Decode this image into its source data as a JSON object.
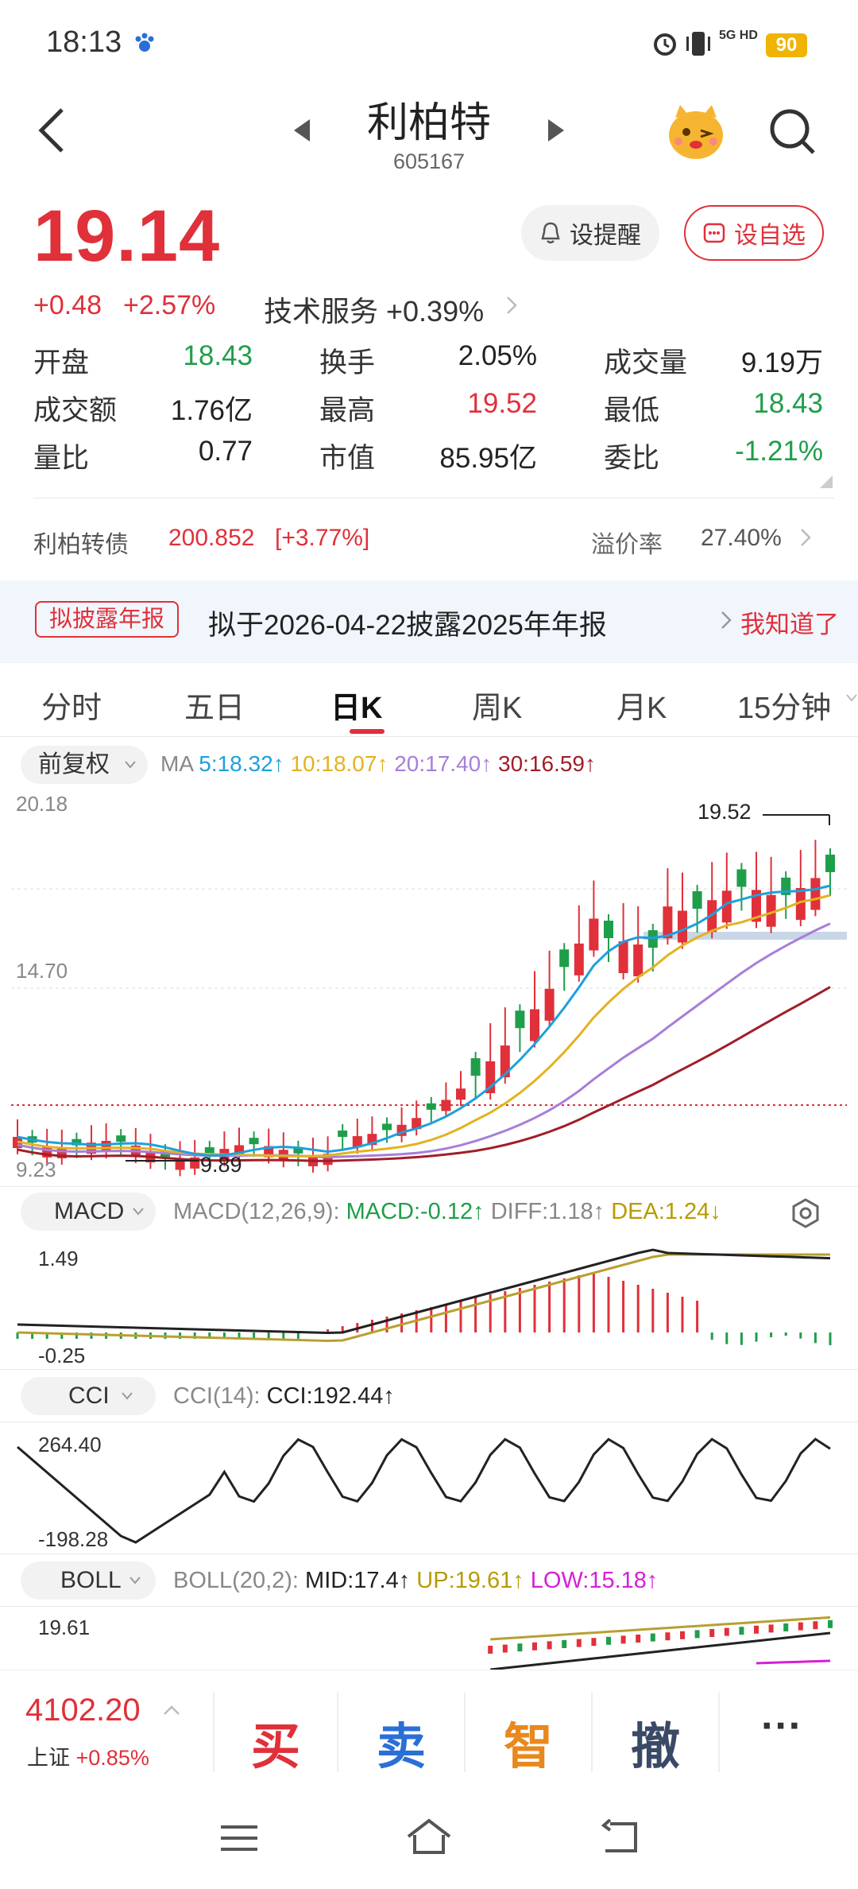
{
  "status": {
    "time": "18:13",
    "battery": "90",
    "network": "5G HD"
  },
  "header": {
    "title": "利柏特",
    "code": "605167"
  },
  "quote": {
    "price": "19.14",
    "change": "+0.48",
    "change_pct": "+2.57%",
    "sector": "技术服务 +0.39%",
    "alert_label": "设提醒",
    "watch_label": "设自选"
  },
  "stats": [
    [
      {
        "label": "开盘",
        "value": "18.43",
        "color": "green"
      },
      {
        "label": "换手",
        "value": "2.05%",
        "color": "dark"
      },
      {
        "label": "成交量",
        "value": "9.19万",
        "color": "dark"
      }
    ],
    [
      {
        "label": "成交额",
        "value": "1.76亿",
        "color": "dark"
      },
      {
        "label": "最高",
        "value": "19.52",
        "color": "red"
      },
      {
        "label": "最低",
        "value": "18.43",
        "color": "green"
      }
    ],
    [
      {
        "label": "量比",
        "value": "0.77",
        "color": "dark"
      },
      {
        "label": "市值",
        "value": "85.95亿",
        "color": "dark"
      },
      {
        "label": "委比",
        "value": "-1.21%",
        "color": "green"
      }
    ]
  ],
  "bond": {
    "name": "利柏转债",
    "price": "200.852",
    "change": "[+3.77%]",
    "premium_label": "溢价率",
    "premium": "27.40%"
  },
  "notice": {
    "tag": "拟披露年报",
    "text": "拟于2026-04-22披露2025年年报",
    "dismiss": "我知道了"
  },
  "tabs": [
    "分时",
    "五日",
    "日K",
    "周K",
    "月K",
    "15分钟"
  ],
  "active_tab": 2,
  "kline": {
    "adjust": "前复权",
    "ma_label": "MA",
    "ma5": "5:18.32↑",
    "ma10": "10:18.07↑",
    "ma20": "20:17.40↑",
    "ma30": "30:16.59↑",
    "y_top": "20.18",
    "y_mid": "14.70",
    "y_bot": "9.23",
    "high_label": "19.52",
    "low_label": "9.89"
  },
  "macd": {
    "name": "MACD",
    "params": "MACD(12,26,9):",
    "macd": "MACD:-0.12↑",
    "diff": "DIFF:1.18↑",
    "dea": "DEA:1.24↓",
    "y_top": "1.49",
    "y_bot": "-0.25"
  },
  "cci": {
    "name": "CCI",
    "params": "CCI(14):",
    "value": "CCI:192.44↑",
    "y_top": "264.40",
    "y_bot": "-198.28"
  },
  "boll": {
    "name": "BOLL",
    "params": "BOLL(20,2):",
    "mid": "MID:17.4↑",
    "up": "UP:19.61↑",
    "low": "LOW:15.18↑",
    "y_top": "19.61"
  },
  "index": {
    "value": "4102.20",
    "name": "上证",
    "change": "+0.85%"
  },
  "actions": {
    "buy": "买",
    "sell": "卖",
    "smart": "智",
    "cancel": "撤",
    "more": "···"
  },
  "colors": {
    "up": "#e0303a",
    "down": "#1f9e4a",
    "ma5": "#1ea0dc",
    "ma10": "#e3b21e",
    "ma20": "#a77ed9",
    "ma30": "#a01e28"
  }
}
